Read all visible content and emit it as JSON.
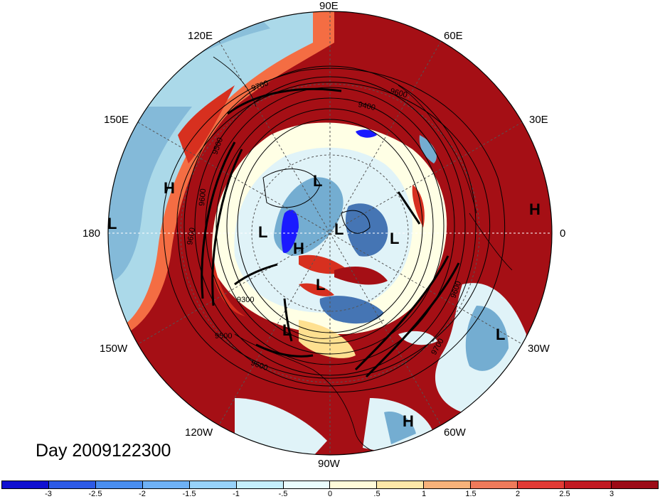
{
  "map": {
    "projection": "north polar stereographic",
    "longitude_labels": {
      "n": "90E",
      "nne": "60E",
      "ene": "30E",
      "e": "0",
      "ese": "30W",
      "sse": "60W",
      "s": "90W",
      "ssw": "120W",
      "wsw": "150W",
      "w": "180",
      "wnw": "150E",
      "nnw": "120E"
    },
    "contour_labels": [
      "9700",
      "9600",
      "9400",
      "9300",
      "9500",
      "9600",
      "9600",
      "9700",
      "9600",
      "9500",
      "9600"
    ],
    "pressure_centers": [
      "H",
      "L",
      "L",
      "H",
      "L",
      "L",
      "H",
      "L",
      "L",
      "L",
      "L",
      "H"
    ],
    "colors": {
      "deep_red": "#a50f15",
      "red": "#d7301f",
      "light_red": "#f46d43",
      "orange": "#fdae61",
      "pale": "#fee090",
      "white": "#ffffe5",
      "pale_blue": "#e0f3f8",
      "light_blue": "#abd9e9",
      "mid_blue": "#74add1",
      "blue": "#4575b4",
      "deep_blue": "#1a1aff"
    }
  },
  "caption": {
    "day": "Day 2009122300"
  },
  "colorbar": {
    "colors": [
      "#1010d0",
      "#2d5ae6",
      "#4a8ef0",
      "#6fb1f5",
      "#97d2fa",
      "#c5effc",
      "#eafcfd",
      "#fffbd9",
      "#fde8a8",
      "#f8b27a",
      "#ef7a5a",
      "#e23a35",
      "#c11a22",
      "#9c0b17"
    ],
    "ticks": [
      "-3",
      "-2.5",
      "-2",
      "-1.5",
      "-1",
      "-.5",
      "0",
      ".5",
      "1",
      "1.5",
      "2",
      "2.5",
      "3"
    ]
  }
}
